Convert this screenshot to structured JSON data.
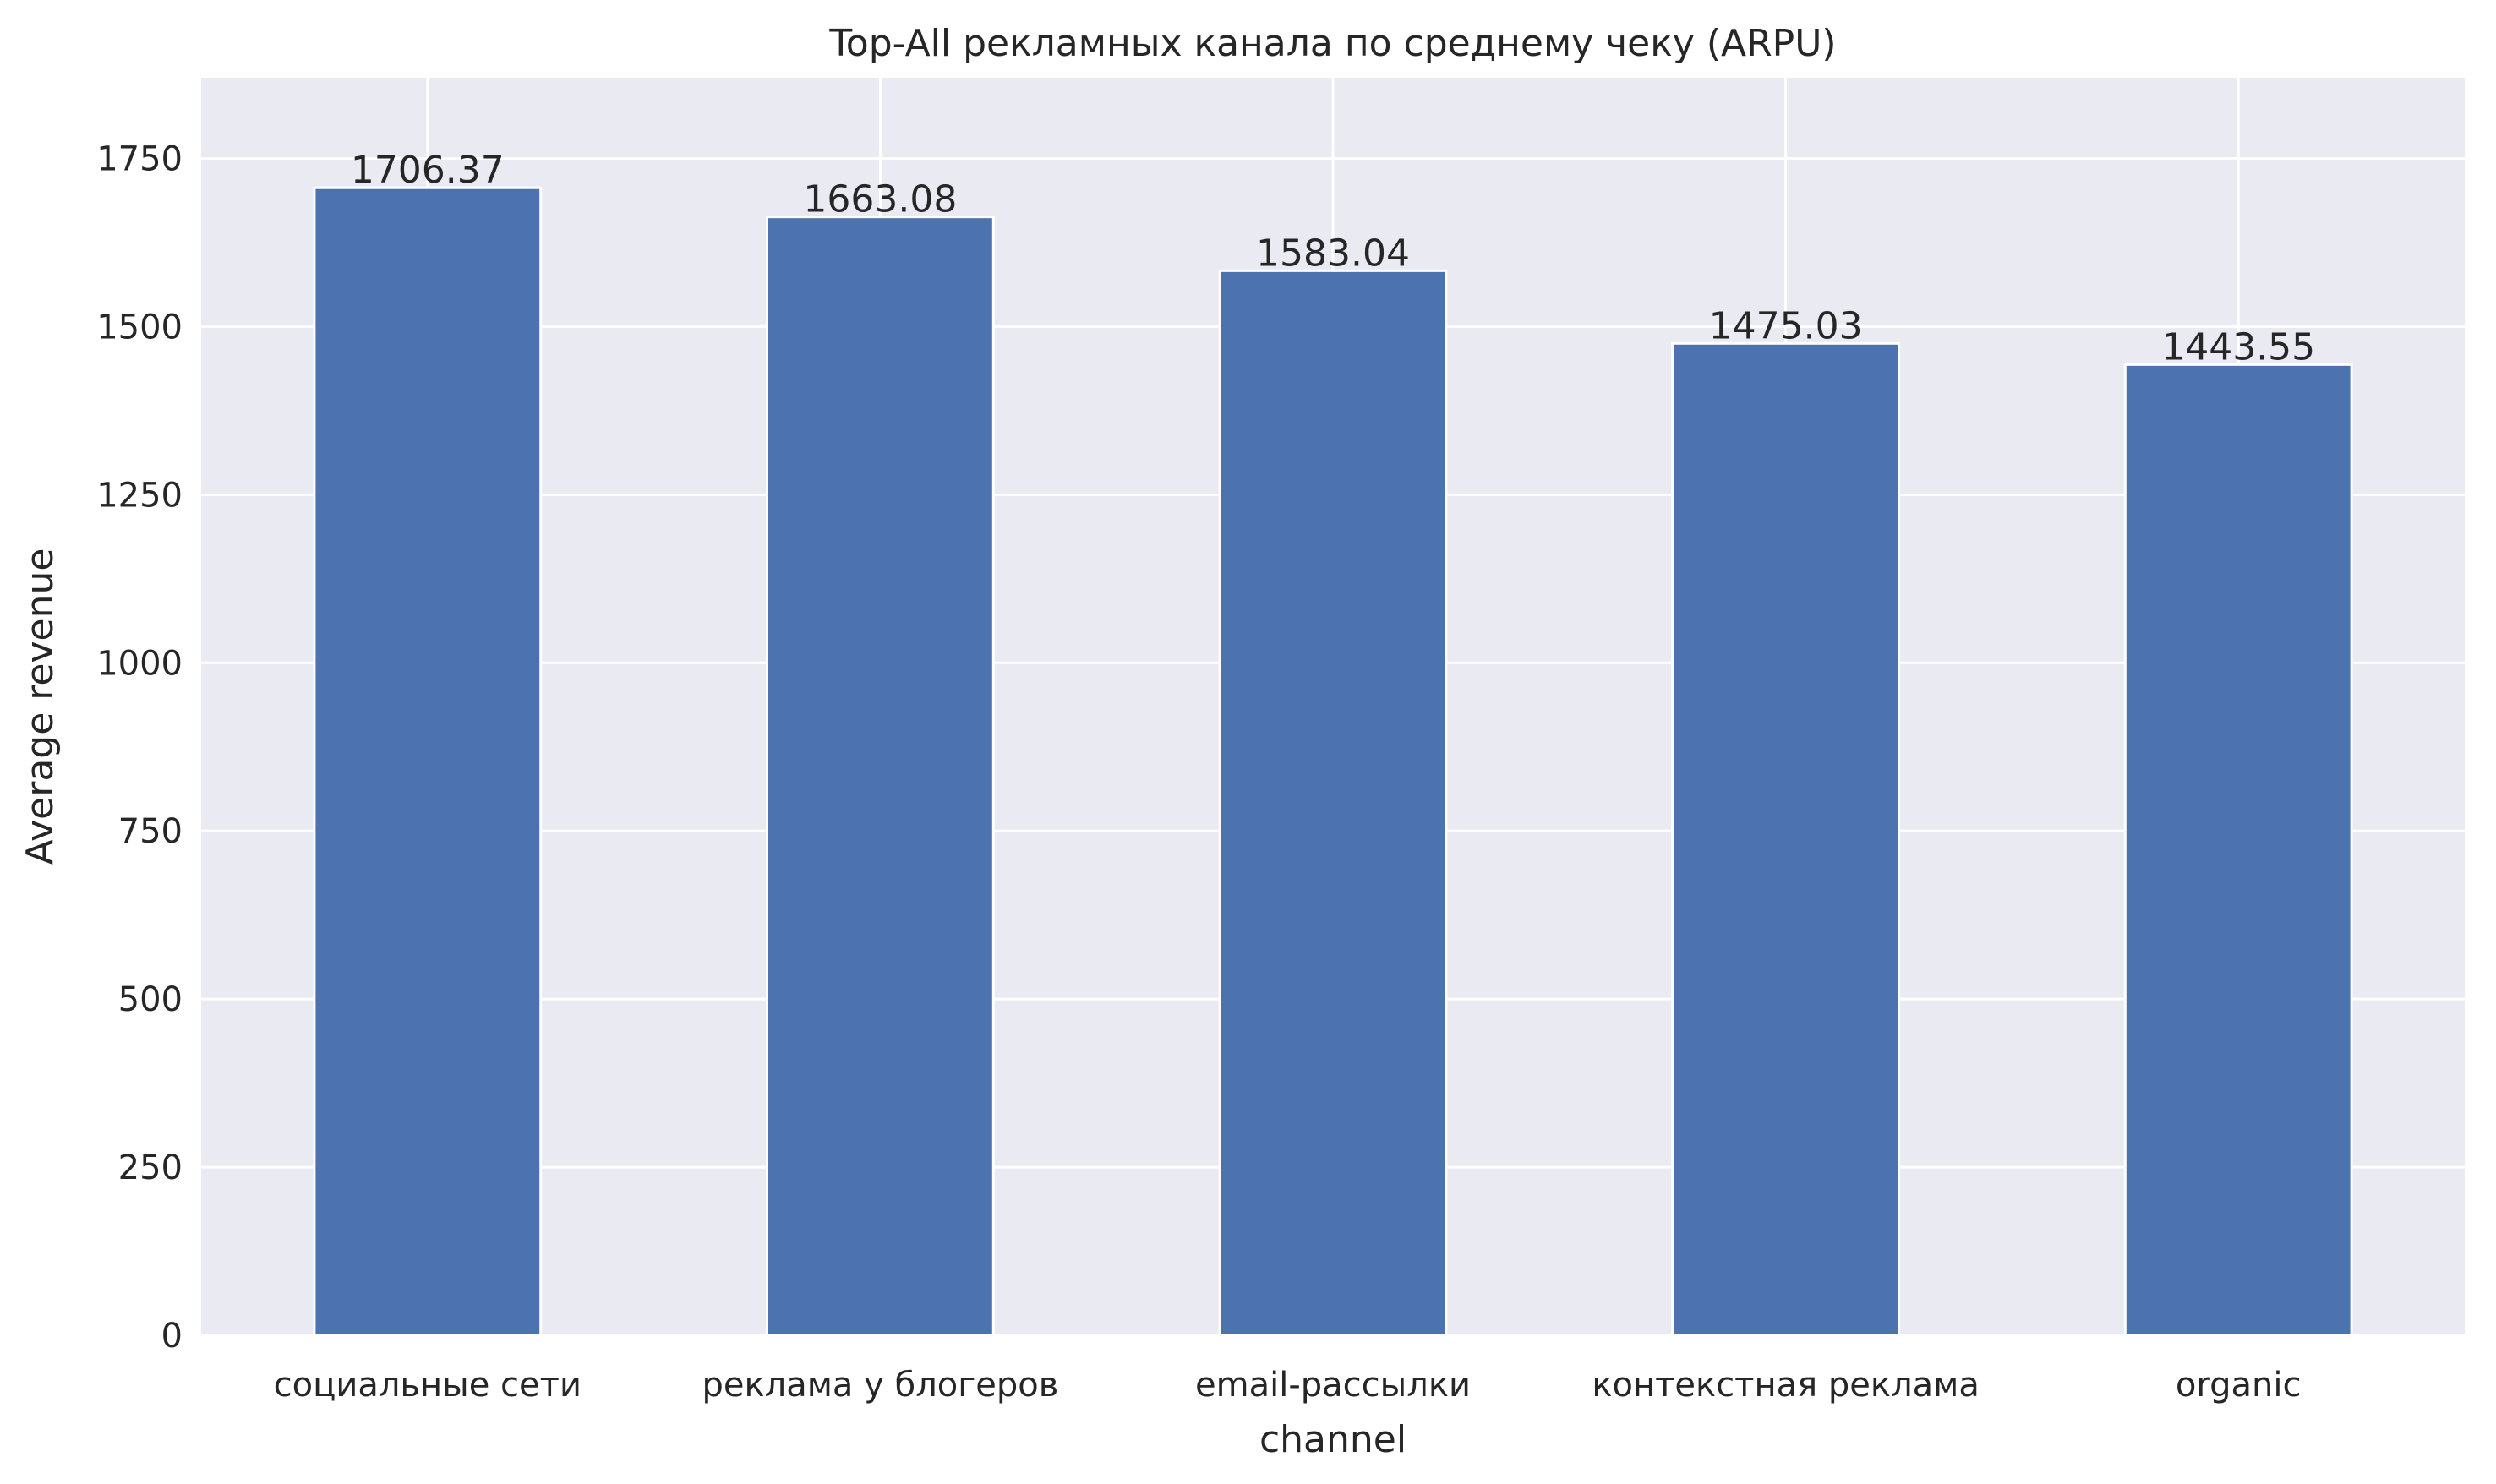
{
  "chart_data": {
    "type": "bar",
    "title": "Top-All рекламных канала по среднему чеку (ARPU)",
    "xlabel": "channel",
    "ylabel": "Average revenue",
    "categories": [
      "социальные сети",
      "реклама у блогеров",
      "email-рассылки",
      "контекстная реклама",
      "organic"
    ],
    "values": [
      1706.37,
      1663.08,
      1583.04,
      1475.03,
      1443.55
    ],
    "data_labels": [
      "1706.37",
      "1663.08",
      "1583.04",
      "1475.03",
      "1443.55"
    ],
    "yticks": [
      0,
      250,
      500,
      750,
      1000,
      1250,
      1500,
      1750
    ],
    "ylim": [
      0,
      1870
    ],
    "grid": true,
    "legend": "none",
    "colors": {
      "bar": "#4c72b0",
      "plot_background": "#eaeaf2",
      "grid": "#ffffff",
      "text": "#262626"
    }
  }
}
